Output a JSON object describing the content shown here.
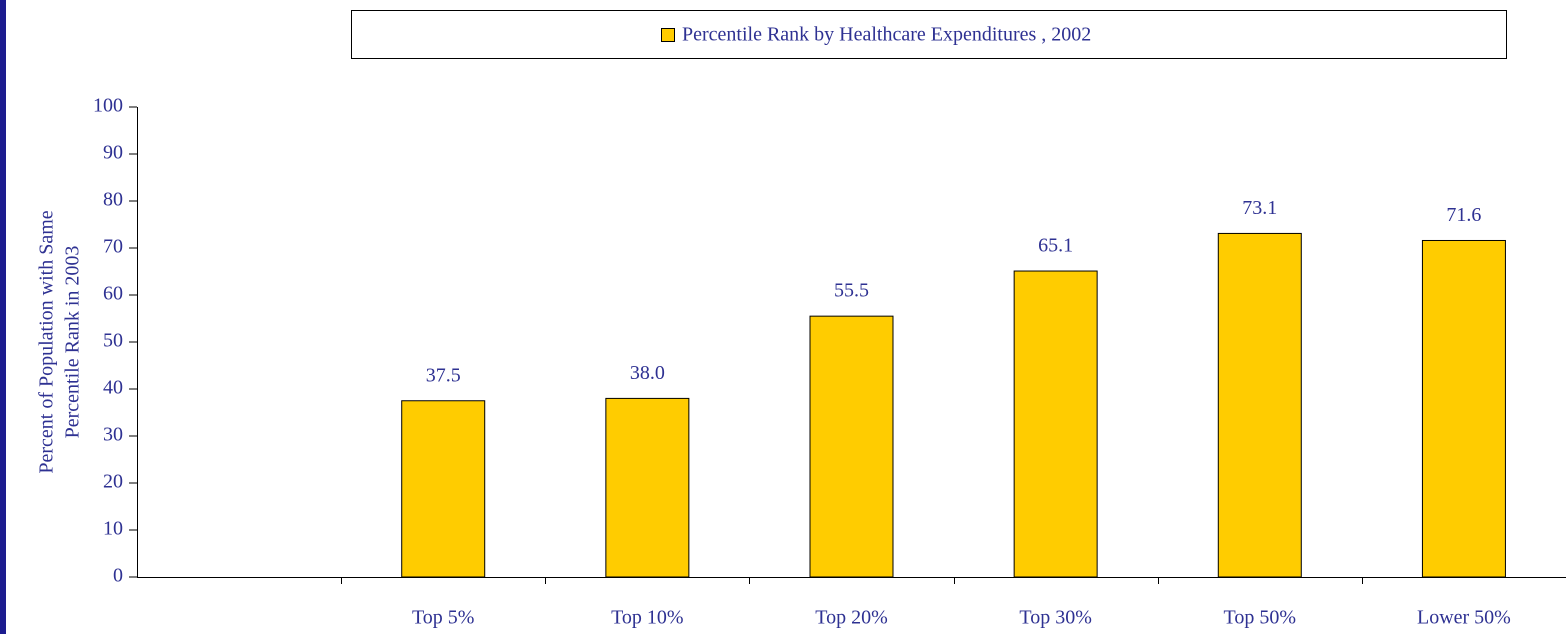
{
  "chart_data": {
    "type": "bar",
    "y_label": [
      "Percent of Population with Same",
      "Percentile Rank in 2003"
    ],
    "categories": [
      null,
      "Top 5%",
      "Top 10%",
      "Top 20%",
      "Top 30%",
      "Top 50%",
      "Lower 50%"
    ],
    "series": [
      {
        "name": "Percentile Rank by Healthcare Expenditures , 2002",
        "color": "#ffcc00",
        "values": [
          null,
          37.5,
          38.0,
          55.5,
          65.1,
          73.1,
          71.6
        ],
        "value_labels": [
          null,
          "37.5",
          "38.0",
          "55.5",
          "65.1",
          "73.1",
          "71.6"
        ]
      }
    ],
    "ylim": [
      0,
      100
    ],
    "yticks": [
      0,
      10,
      20,
      30,
      40,
      50,
      60,
      70,
      80,
      90,
      100
    ],
    "legend": "top"
  }
}
